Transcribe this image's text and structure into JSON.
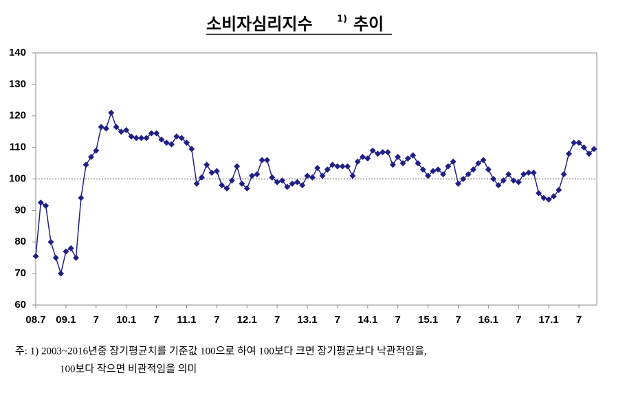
{
  "chart_data": {
    "type": "line",
    "title": "소비자심리지수",
    "title_note": "1)",
    "title_end": "추이",
    "categories": [
      "08.7",
      null,
      null,
      null,
      null,
      null,
      "09.1",
      null,
      null,
      null,
      null,
      null,
      "7",
      null,
      null,
      null,
      null,
      null,
      "10.1",
      null,
      null,
      null,
      null,
      null,
      "7",
      null,
      null,
      null,
      null,
      null,
      "11.1",
      null,
      null,
      null,
      null,
      null,
      "7",
      null,
      null,
      null,
      null,
      null,
      "12.1",
      null,
      null,
      null,
      null,
      null,
      "7",
      null,
      null,
      null,
      null,
      null,
      "13.1",
      null,
      null,
      null,
      null,
      null,
      "7",
      null,
      null,
      null,
      null,
      null,
      "14.1",
      null,
      null,
      null,
      null,
      null,
      "7",
      null,
      null,
      null,
      null,
      null,
      "15.1",
      null,
      null,
      null,
      null,
      null,
      "7",
      null,
      null,
      null,
      null,
      null,
      "16.1",
      null,
      null,
      null,
      null,
      null,
      "7",
      null,
      null,
      null,
      null,
      null,
      "17.1",
      null,
      null,
      null,
      null,
      null,
      "7",
      null,
      null,
      null
    ],
    "series": [
      {
        "name": "소비자심리지수",
        "color": "#1f1f86",
        "values": [
          75.5,
          92.5,
          91.5,
          80,
          75,
          70,
          77,
          78,
          75,
          94,
          104.5,
          107,
          109,
          116.5,
          116,
          121,
          116.5,
          115,
          115.5,
          113.5,
          113,
          113,
          113,
          114.5,
          114.5,
          112.5,
          111.5,
          111,
          113.5,
          113,
          111.5,
          109.5,
          98.5,
          100.5,
          104.5,
          102,
          102.5,
          98,
          97,
          99.5,
          104,
          98.5,
          97,
          101,
          101.5,
          106,
          106,
          100.5,
          99,
          99.5,
          97.5,
          98.5,
          99,
          98,
          101,
          100.5,
          103.5,
          101,
          103,
          104.5,
          104,
          104,
          104,
          101,
          105.5,
          107,
          106.5,
          109,
          108,
          108.5,
          108.5,
          104.5,
          107,
          105,
          106.5,
          107.5,
          105,
          103,
          101,
          102.5,
          103,
          101.5,
          104,
          105.5,
          98.5,
          100,
          101.5,
          103,
          105,
          106,
          103,
          100,
          98,
          99.5,
          101.5,
          99.5,
          99,
          101.5,
          102,
          102,
          95.5,
          94,
          93.5,
          94.5,
          96.5,
          101.5,
          108,
          111.5,
          111.5,
          110,
          108,
          109.5
        ]
      }
    ],
    "ylim": [
      60,
      140
    ],
    "yticks": [
      60,
      70,
      80,
      90,
      100,
      110,
      120,
      130,
      140
    ],
    "reference_line": 100,
    "footnote": [
      "주: 1) 2003~2016년중 장기평균치를 기준값 100으로 하여 100보다 크면 장기평균보다 낙관적임을,",
      "100보다 작으면 비관적임을 의미"
    ]
  }
}
